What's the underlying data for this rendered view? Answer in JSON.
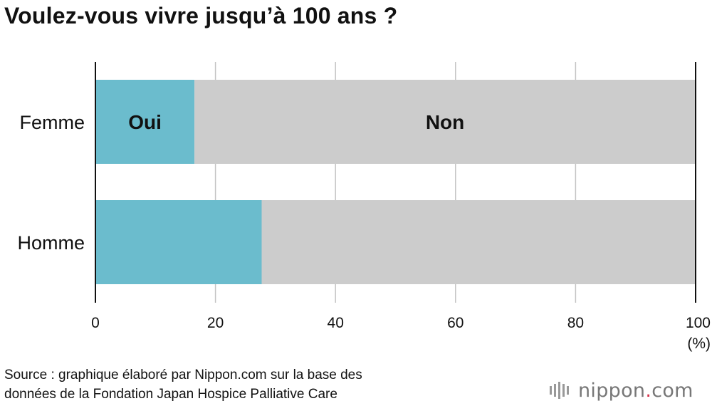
{
  "header": {
    "title": "Voulez-vous vivre jusqu’à 100 ans ?"
  },
  "chart_data": {
    "type": "bar",
    "orientation": "horizontal",
    "stacked": true,
    "title": "Voulez-vous vivre jusqu’à 100 ans ?",
    "categories": [
      "Femme",
      "Homme"
    ],
    "series": [
      {
        "name": "Oui",
        "color": "#6bbccd",
        "values": [
          16.5,
          27.7
        ]
      },
      {
        "name": "Non",
        "color": "#cccccc",
        "values": [
          83.5,
          72.3
        ]
      }
    ],
    "segment_labels": [
      {
        "category": "Femme",
        "series": "Oui",
        "text": "Oui"
      },
      {
        "category": "Femme",
        "series": "Non",
        "text": "Non"
      }
    ],
    "xlim": [
      0,
      100
    ],
    "xticks": [
      0,
      20,
      40,
      60,
      80,
      100
    ],
    "xlabel": "(%)",
    "grid": true
  },
  "footer": {
    "source_line1": "Source : graphique élaboré par Nippon.com sur la base des",
    "source_line2": "données de la Fondation Japan Hospice Palliative Care",
    "logo_name": "nippon",
    "logo_dot": ".",
    "logo_tld": "com",
    "logo_color": "#d6324b"
  }
}
